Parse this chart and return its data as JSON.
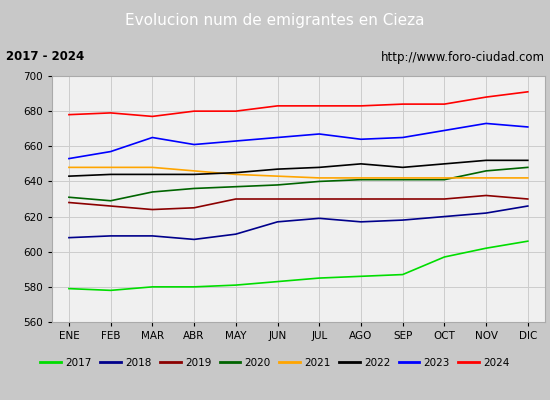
{
  "title": "Evolucion num de emigrantes en Cieza",
  "subtitle_left": "2017 - 2024",
  "subtitle_right": "http://www.foro-ciudad.com",
  "title_bg_color": "#4a7fc1",
  "title_text_color": "#ffffff",
  "subtitle_bg_color": "#d8d8d8",
  "ylim": [
    560,
    700
  ],
  "yticks": [
    560,
    580,
    600,
    620,
    640,
    660,
    680,
    700
  ],
  "months": [
    "ENE",
    "FEB",
    "MAR",
    "ABR",
    "MAY",
    "JUN",
    "JUL",
    "AGO",
    "SEP",
    "OCT",
    "NOV",
    "DIC"
  ],
  "series": {
    "2017": {
      "color": "#00dd00",
      "data": [
        579,
        578,
        580,
        580,
        581,
        583,
        585,
        586,
        587,
        597,
        602,
        606
      ]
    },
    "2018": {
      "color": "#00008b",
      "data": [
        608,
        609,
        609,
        607,
        610,
        617,
        619,
        617,
        618,
        620,
        622,
        626
      ]
    },
    "2019": {
      "color": "#8b0000",
      "data": [
        628,
        626,
        624,
        625,
        630,
        630,
        630,
        630,
        630,
        630,
        632,
        630
      ]
    },
    "2020": {
      "color": "#006400",
      "data": [
        631,
        629,
        634,
        636,
        637,
        638,
        640,
        641,
        641,
        641,
        646,
        648
      ]
    },
    "2021": {
      "color": "#ffa500",
      "data": [
        648,
        648,
        648,
        646,
        644,
        643,
        642,
        642,
        642,
        642,
        642,
        642
      ]
    },
    "2022": {
      "color": "#000000",
      "data": [
        643,
        644,
        644,
        644,
        645,
        647,
        648,
        650,
        648,
        650,
        652,
        652
      ]
    },
    "2023": {
      "color": "#0000ff",
      "data": [
        653,
        657,
        665,
        661,
        663,
        665,
        667,
        664,
        665,
        669,
        673,
        671
      ]
    },
    "2024": {
      "color": "#ff0000",
      "data": [
        678,
        679,
        677,
        680,
        680,
        683,
        683,
        683,
        684,
        684,
        688,
        691
      ]
    }
  },
  "legend_order": [
    "2017",
    "2018",
    "2019",
    "2020",
    "2021",
    "2022",
    "2023",
    "2024"
  ],
  "grid_color": "#cccccc",
  "plot_bg_color": "#f0f0f0",
  "outer_bg_color": "#c8c8c8"
}
